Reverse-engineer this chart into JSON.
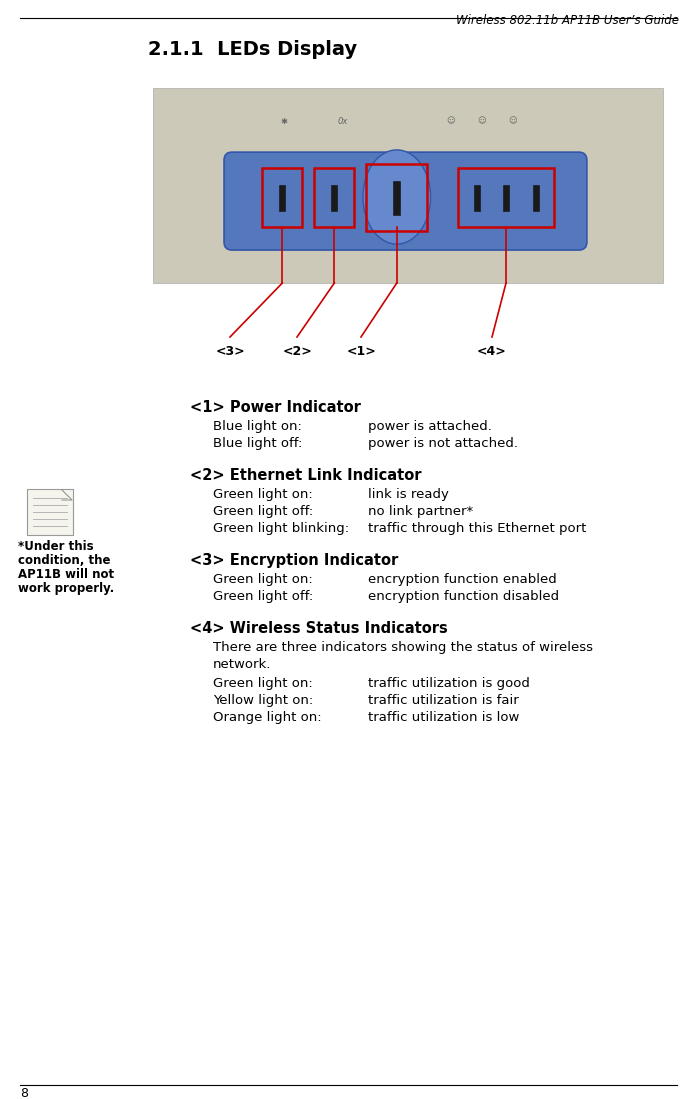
{
  "header_text": "Wireless 802.11b AP11B User’s Guide",
  "section_title": "2.1.1  LEDs Display",
  "page_number": "8",
  "bg_color": "#ffffff",
  "text_color": "#000000",
  "red_color": "#cc0000",
  "note_text_lines": [
    "*Under this",
    "condition, the",
    "AP11B will not",
    "work properly."
  ],
  "sections": [
    {
      "heading": "<1> Power Indicator",
      "items": [
        [
          "Blue light on:",
          "power is attached."
        ],
        [
          "Blue light off:",
          "power is not attached."
        ]
      ]
    },
    {
      "heading": "<2> Ethernet Link Indicator",
      "items": [
        [
          "Green light on:",
          "link is ready"
        ],
        [
          "Green light off:",
          "no link partner*"
        ],
        [
          "Green light blinking:",
          "traffic through this Ethernet port"
        ]
      ]
    },
    {
      "heading": "<3> Encryption Indicator",
      "items": [
        [
          "Green light on:",
          "encryption function enabled"
        ],
        [
          "Green light off:",
          "encryption function disabled"
        ]
      ]
    },
    {
      "heading": "<4> Wireless Status Indicators",
      "para": "There are three indicators showing the status of wireless\nnetwork.",
      "items": [
        [
          "Green light on:",
          "traffic utilization is good"
        ],
        [
          "Yellow light on:",
          "traffic utilization is fair"
        ],
        [
          "Orange light on:",
          "traffic utilization is low"
        ]
      ]
    }
  ]
}
